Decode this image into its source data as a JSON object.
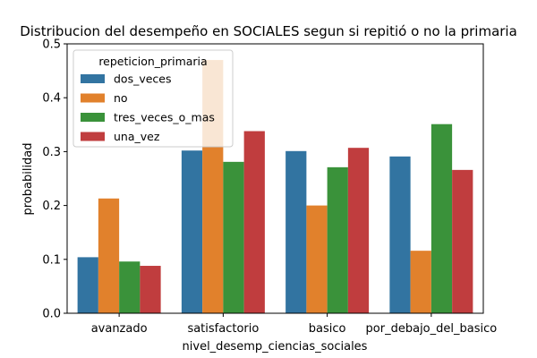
{
  "chart_data": {
    "type": "bar",
    "title": "Distribucion del desempeño en SOCIALES segun si repitió o no la primaria",
    "xlabel": "nivel_desemp_ciencias_sociales",
    "ylabel": "probabilidad",
    "categories": [
      "avanzado",
      "satisfactorio",
      "basico",
      "por_debajo_del_basico"
    ],
    "ylim": [
      0,
      0.5
    ],
    "yticks": [
      "0.0",
      "0.1",
      "0.2",
      "0.3",
      "0.4",
      "0.5"
    ],
    "grid": false,
    "legend": {
      "title": "repeticion_primaria",
      "placement": "upper-left"
    },
    "series": [
      {
        "name": "dos_veces",
        "color": "#3274a1",
        "values": [
          0.104,
          0.302,
          0.301,
          0.291
        ]
      },
      {
        "name": "no",
        "color": "#e1812c",
        "values": [
          0.213,
          0.47,
          0.2,
          0.116
        ]
      },
      {
        "name": "tres_veces_o_mas",
        "color": "#3a923a",
        "values": [
          0.096,
          0.281,
          0.271,
          0.351
        ]
      },
      {
        "name": "una_vez",
        "color": "#c03d3e",
        "values": [
          0.088,
          0.338,
          0.307,
          0.266
        ]
      }
    ]
  }
}
